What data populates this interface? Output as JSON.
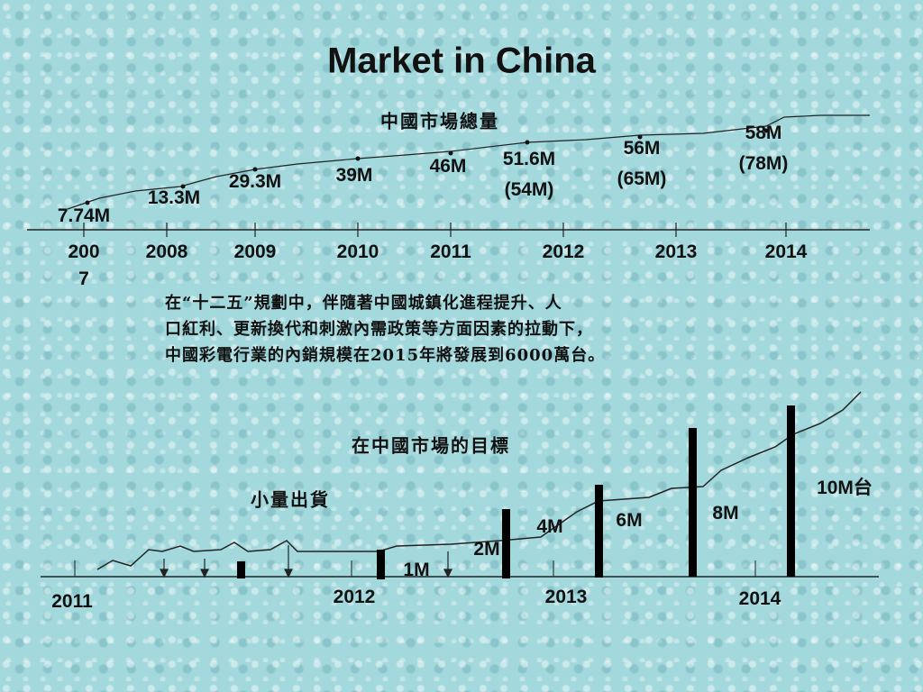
{
  "title": "Market in China",
  "total_market": {
    "title": "中國市場總量",
    "years": [
      "2007",
      "2008",
      "2009",
      "2010",
      "2011",
      "2012",
      "2013",
      "2014"
    ],
    "labels": [
      {
        "value": "7.74M"
      },
      {
        "value": "13.3M"
      },
      {
        "value": "29.3M"
      },
      {
        "value": "39M"
      },
      {
        "value": "46M"
      },
      {
        "value": "51.6M",
        "forecast": "(54M)"
      },
      {
        "value": "56M",
        "forecast": "(65M)"
      },
      {
        "value": "58M",
        "forecast": "(78M)"
      }
    ]
  },
  "paragraph": [
    "在“十二五”規劃中，伴隨著中國城鎮化進程提升、人",
    "口紅利、更新換代和刺激內需政策等方面因素的拉動下，",
    "中國彩電行業的內銷規模在2015年將發展到6000萬台。"
  ],
  "target": {
    "title": "在中國市場的目標",
    "annotation": "小量出貨",
    "years": [
      "2011",
      "2012",
      "2013",
      "2014"
    ],
    "labels": [
      "1M",
      "2M",
      "4M",
      "6M",
      "8M",
      "10M台"
    ]
  }
}
